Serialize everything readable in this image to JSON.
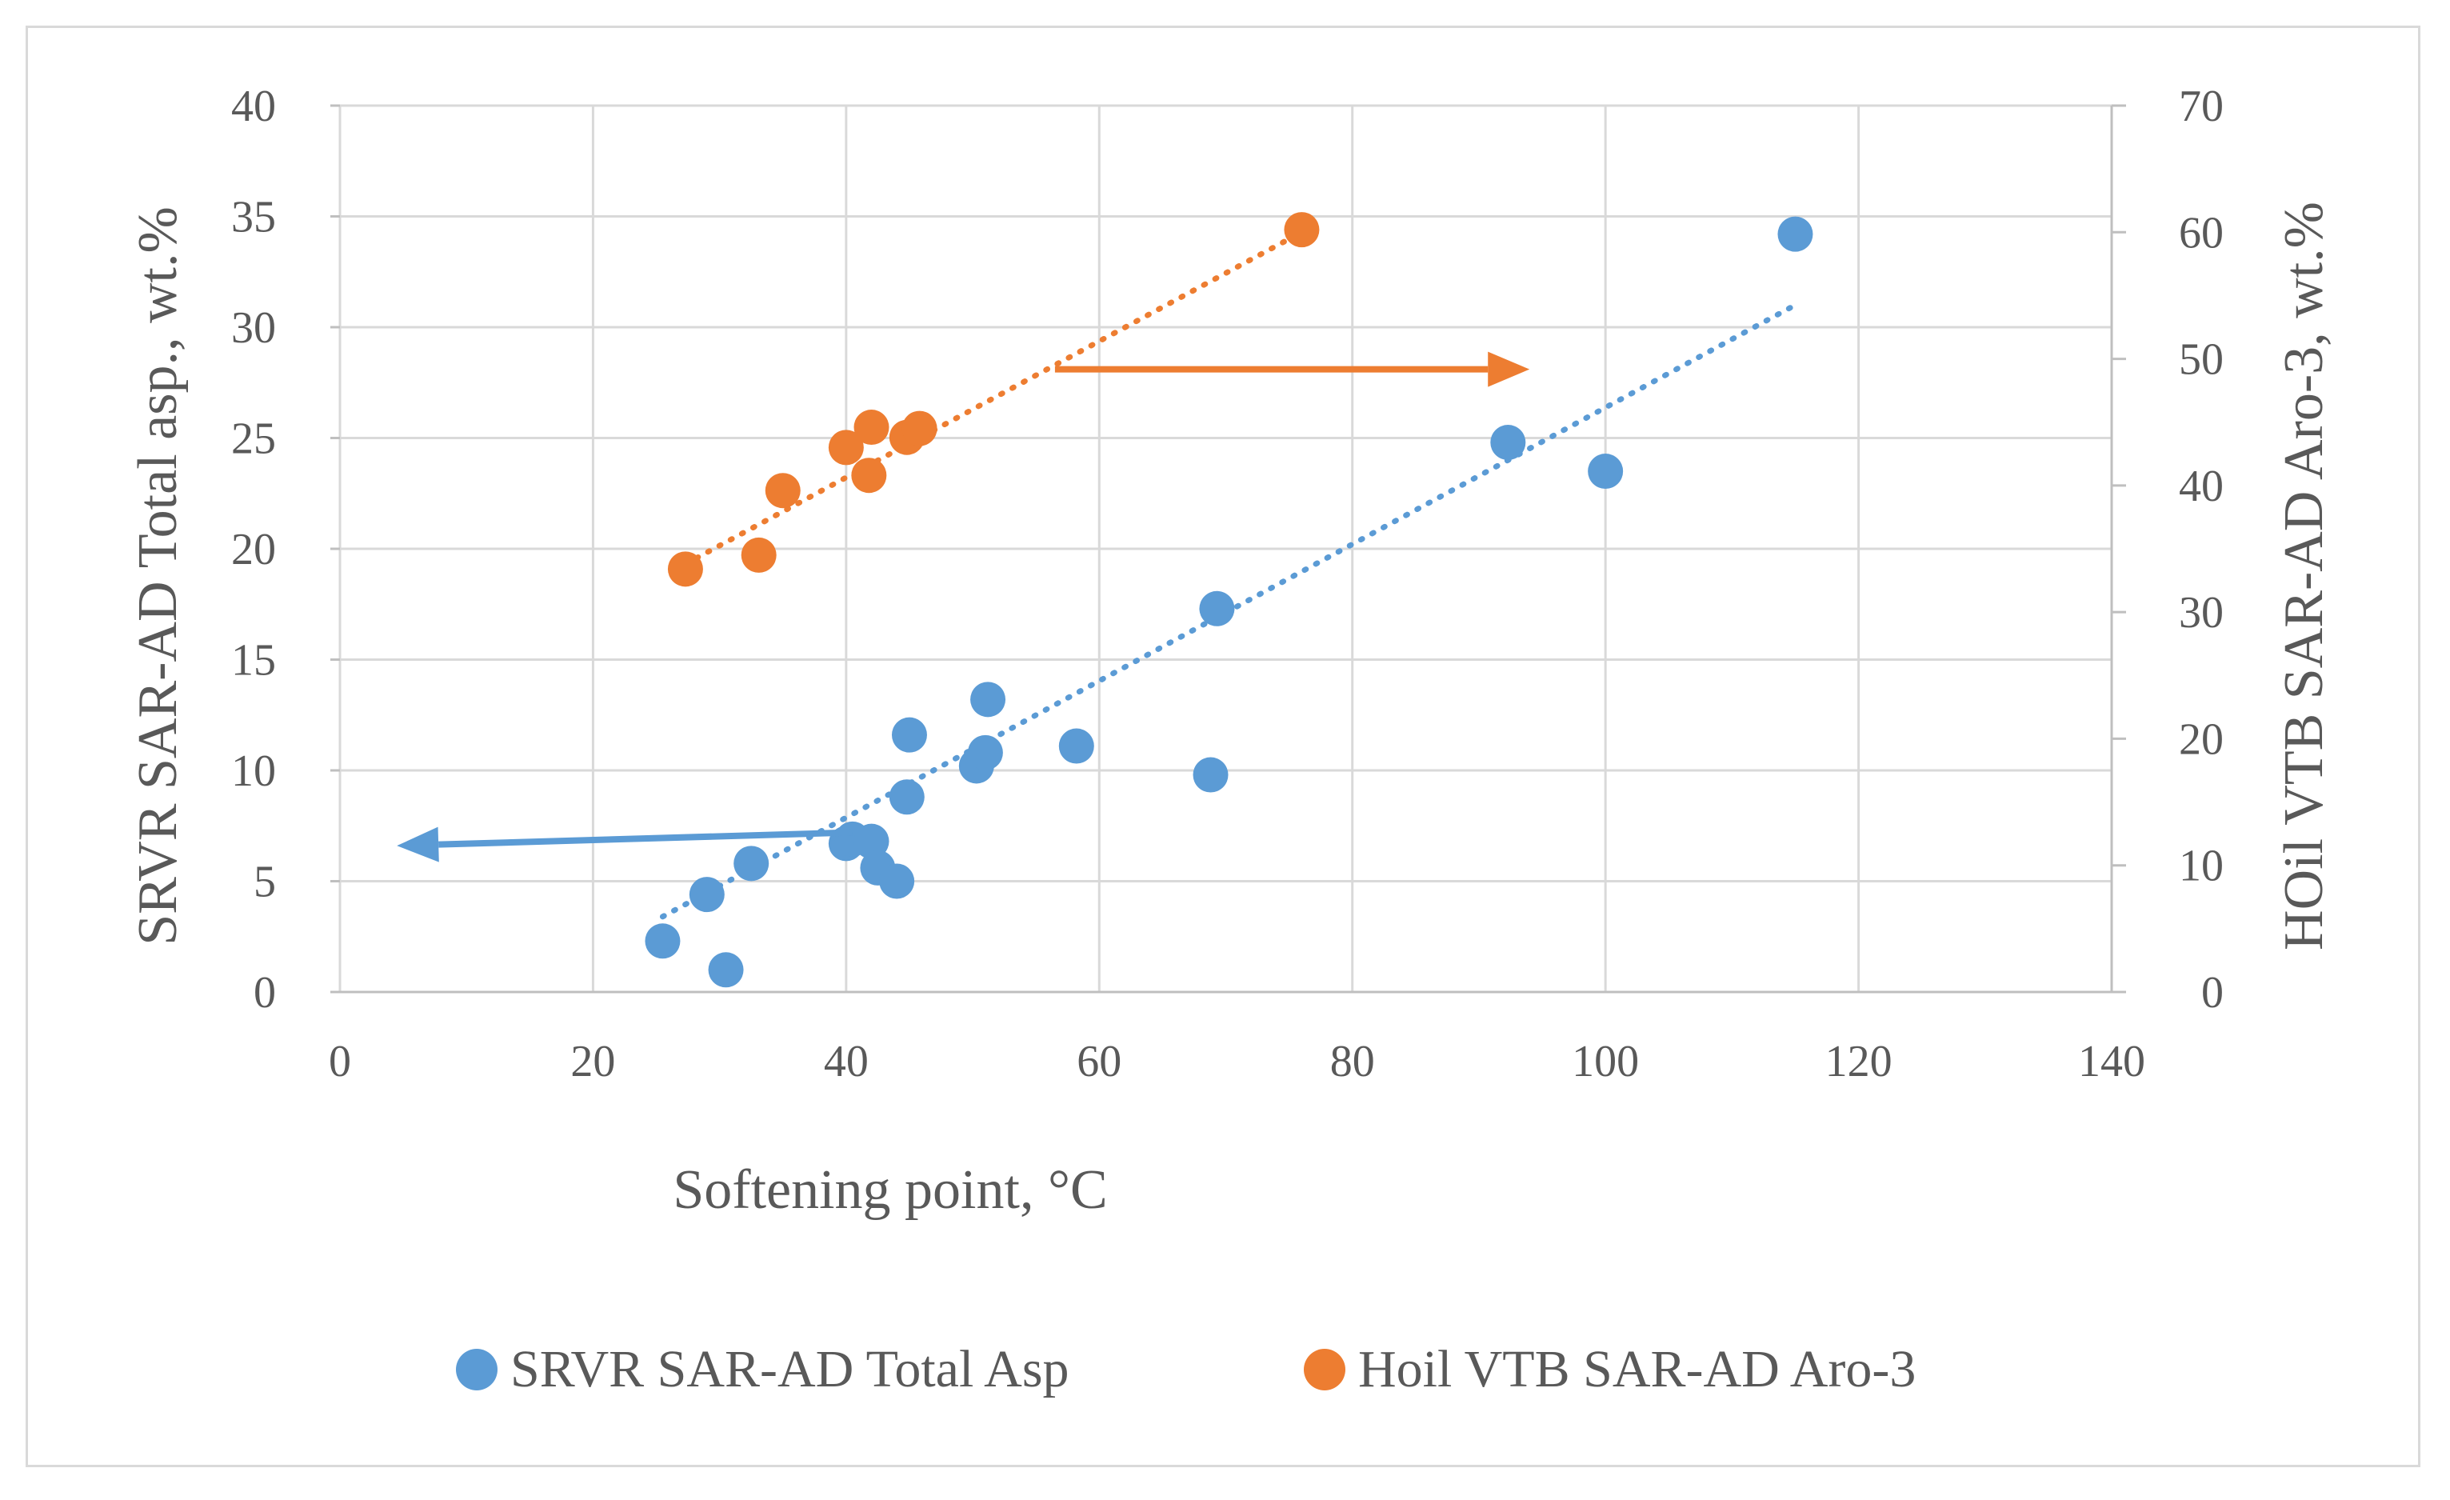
{
  "chart_data": {
    "type": "scatter",
    "title": "",
    "xlabel": "Softening point, °C",
    "ylabel": "SRVR SAR-AD Total asp., wt.%",
    "y2label": "HOil VTB SAR-AD Aro-3, wt.%",
    "xlim": [
      0,
      140
    ],
    "ylim": [
      0,
      40
    ],
    "y2lim": [
      0,
      70
    ],
    "x_ticks": [
      0,
      20,
      40,
      60,
      80,
      100,
      120,
      140
    ],
    "y_ticks": [
      0,
      5,
      10,
      15,
      20,
      25,
      30,
      35,
      40
    ],
    "y2_ticks": [
      0,
      10,
      20,
      30,
      40,
      50,
      60,
      70
    ],
    "grid": true,
    "legend_position": "bottom",
    "series": [
      {
        "name": "SRVR SAR-AD Total Asp",
        "axis": "left",
        "color": "#5b9bd5",
        "points": [
          {
            "x": 25.5,
            "y": 2.3
          },
          {
            "x": 29.0,
            "y": 4.4
          },
          {
            "x": 30.5,
            "y": 1.0
          },
          {
            "x": 32.5,
            "y": 5.8
          },
          {
            "x": 40.0,
            "y": 6.7
          },
          {
            "x": 40.5,
            "y": 6.9
          },
          {
            "x": 42.0,
            "y": 6.8
          },
          {
            "x": 42.5,
            "y": 5.6
          },
          {
            "x": 44.0,
            "y": 5.0
          },
          {
            "x": 44.8,
            "y": 8.8
          },
          {
            "x": 45.0,
            "y": 11.6
          },
          {
            "x": 50.3,
            "y": 10.2
          },
          {
            "x": 51.0,
            "y": 10.8
          },
          {
            "x": 51.2,
            "y": 13.2
          },
          {
            "x": 58.2,
            "y": 11.1
          },
          {
            "x": 68.8,
            "y": 9.8
          },
          {
            "x": 69.3,
            "y": 17.3
          },
          {
            "x": 92.3,
            "y": 24.8
          },
          {
            "x": 100.0,
            "y": 23.5
          },
          {
            "x": 115.0,
            "y": 34.2
          }
        ],
        "trendline": {
          "x": [
            25.5,
            115.0
          ],
          "y": [
            3.4,
            31.0
          ]
        }
      },
      {
        "name": "Hoil VTB SAR-AD Aro-3",
        "axis": "right",
        "color": "#ed7d31",
        "points": [
          {
            "x": 27.3,
            "y": 33.4
          },
          {
            "x": 33.1,
            "y": 34.5
          },
          {
            "x": 35.0,
            "y": 39.6
          },
          {
            "x": 40.0,
            "y": 43.0
          },
          {
            "x": 41.8,
            "y": 40.8
          },
          {
            "x": 42.0,
            "y": 44.6
          },
          {
            "x": 44.8,
            "y": 43.8
          },
          {
            "x": 45.8,
            "y": 44.5
          },
          {
            "x": 76.0,
            "y": 60.2
          }
        ],
        "trendline": {
          "x": [
            27.3,
            76.0
          ],
          "y": [
            33.8,
            60.0
          ]
        }
      }
    ],
    "annotations": [
      {
        "name": "orange-arrow",
        "direction": "right",
        "from": [
          56.5,
          28.1
        ],
        "to": [
          94.0,
          28.1
        ],
        "color": "#ed7d31"
      },
      {
        "name": "blue-arrow",
        "direction": "left",
        "from": [
          40.5,
          7.2
        ],
        "to": [
          4.5,
          6.6
        ],
        "color": "#5b9bd5"
      }
    ]
  }
}
